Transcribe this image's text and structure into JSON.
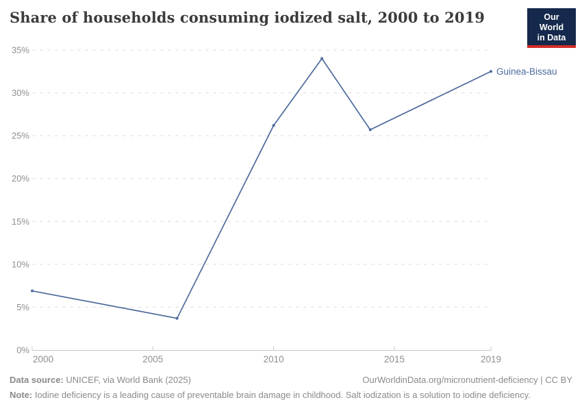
{
  "header": {
    "title": "Share of households consuming iodized salt, 2000 to 2019",
    "logo_line1": "Our World",
    "logo_line2": "in Data"
  },
  "chart_data": {
    "type": "line",
    "title": "Share of households consuming iodized salt, 2000 to 2019",
    "series": [
      {
        "name": "Guinea-Bissau",
        "color": "#4C6A9C",
        "x": [
          2000,
          2006,
          2010,
          2012,
          2014,
          2019
        ],
        "values": [
          6.9,
          3.7,
          26.2,
          34,
          25.7,
          32.5
        ]
      }
    ],
    "xlabel": "",
    "ylabel": "",
    "xlim": [
      2000,
      2019
    ],
    "ylim": [
      0,
      35
    ],
    "xticks": [
      2000,
      2005,
      2010,
      2015,
      2019
    ],
    "yticks": [
      0,
      5,
      10,
      15,
      20,
      25,
      30,
      35
    ],
    "ytick_suffix": "%",
    "grid": "horizontal-dashed",
    "legend_position": "end-of-line-label",
    "entity_label": "Guinea-Bissau"
  },
  "colors": {
    "line": "#4C6A9C",
    "grid": "#dedede",
    "axis": "#c6c6c6",
    "tick_label": "#8f8f8f",
    "entity_label": "#4C6A9C"
  },
  "footer": {
    "source_label": "Data source:",
    "source_text": "UNICEF, via World Bank (2025)",
    "rights": "OurWorldinData.org/micronutrient-deficiency | CC BY",
    "note_label": "Note:",
    "note_text": "Iodine deficiency is a leading cause of preventable brain damage in childhood. Salt iodization is a solution to iodine deficiency."
  }
}
